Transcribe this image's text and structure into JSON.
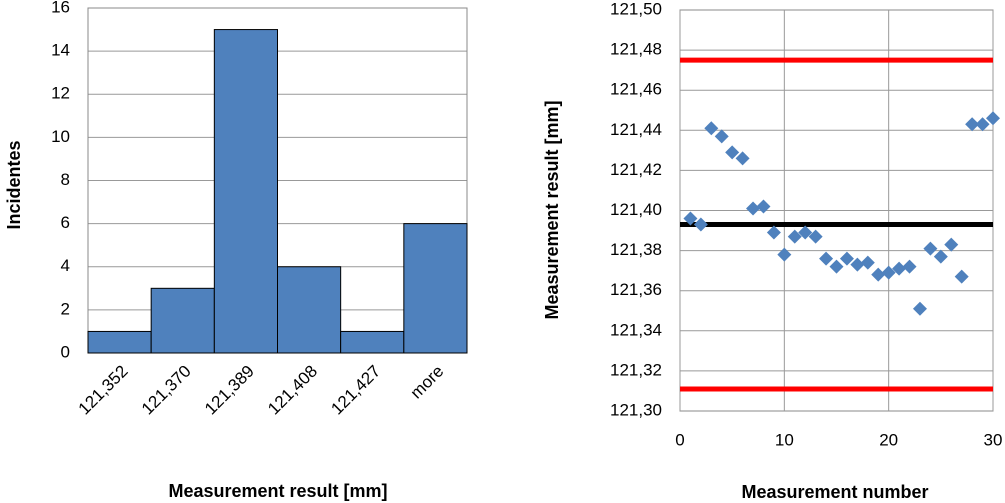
{
  "chart_data": [
    {
      "type": "bar",
      "x_label": "Measurement result [mm]",
      "y_label": "Incidentes",
      "categories": [
        "121,352",
        "121,370",
        "121,389",
        "121,408",
        "121,427",
        "more"
      ],
      "values": [
        1,
        3,
        15,
        4,
        1,
        6
      ],
      "color": "#4f81bd",
      "ylim": [
        0,
        16
      ],
      "yticks": [
        0,
        2,
        4,
        6,
        8,
        10,
        12,
        14,
        16
      ],
      "grid": true
    },
    {
      "type": "scatter",
      "x_label": "Measurement number",
      "y_label": "Measurement result [mm]",
      "x": [
        1,
        2,
        3,
        4,
        5,
        6,
        7,
        8,
        9,
        10,
        11,
        12,
        13,
        14,
        15,
        16,
        17,
        18,
        19,
        20,
        21,
        22,
        23,
        24,
        25,
        26,
        27,
        28,
        29,
        30
      ],
      "values": [
        121.396,
        121.393,
        121.441,
        121.437,
        121.429,
        121.426,
        121.401,
        121.402,
        121.389,
        121.378,
        121.387,
        121.389,
        121.387,
        121.376,
        121.372,
        121.376,
        121.373,
        121.374,
        121.368,
        121.369,
        121.371,
        121.372,
        121.351,
        121.381,
        121.377,
        121.383,
        121.367,
        121.443,
        121.443,
        121.446
      ],
      "color": "#4f81bd",
      "xlim": [
        0,
        30
      ],
      "xticks": [
        0,
        10,
        20,
        30
      ],
      "ylim": [
        121.3,
        121.5
      ],
      "yticks": [
        {
          "value": 121.3,
          "label": "121,30"
        },
        {
          "value": 121.32,
          "label": "121,32"
        },
        {
          "value": 121.34,
          "label": "121,34"
        },
        {
          "value": 121.36,
          "label": "121,36"
        },
        {
          "value": 121.38,
          "label": "121,38"
        },
        {
          "value": 121.4,
          "label": "121,40"
        },
        {
          "value": 121.42,
          "label": "121,42"
        },
        {
          "value": 121.44,
          "label": "121,44"
        },
        {
          "value": 121.46,
          "label": "121,46"
        },
        {
          "value": 121.48,
          "label": "121,48"
        },
        {
          "value": 121.5,
          "label": "121,50"
        }
      ],
      "reference_lines": [
        {
          "value": 121.475,
          "color": "#ff0000"
        },
        {
          "value": 121.393,
          "color": "#000000"
        },
        {
          "value": 121.311,
          "color": "#ff0000"
        }
      ],
      "grid": true
    }
  ]
}
